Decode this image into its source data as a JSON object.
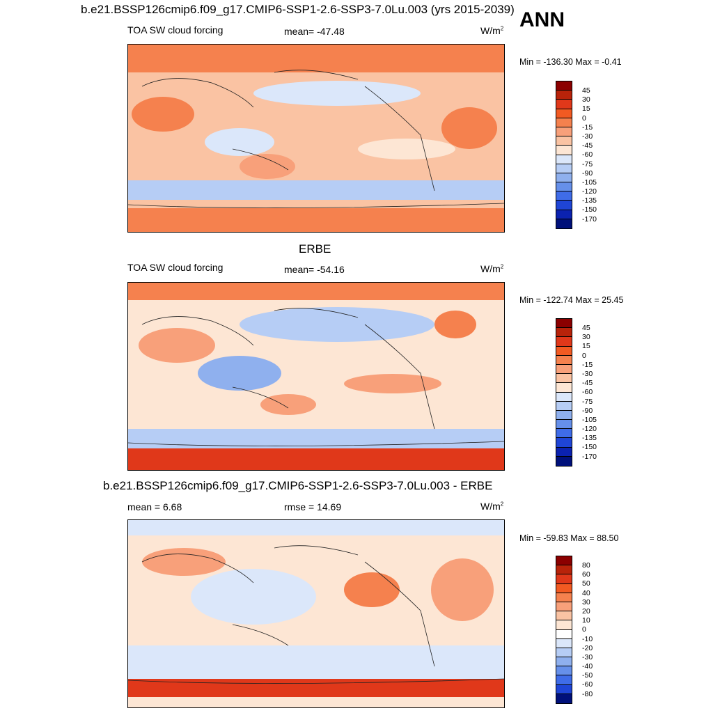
{
  "header": {
    "case_title": "b.e21.BSSP126cmip6.f09_g17.CMIP6-SSP1-2.6-SSP3-7.0Lu.003 (yrs 2015-2039)",
    "season": "ANN"
  },
  "chart_data": [
    {
      "type": "heatmap",
      "title": "b.e21.BSSP126cmip6.f09_g17.CMIP6-SSP1-2.6-SSP3-7.0Lu.003 (yrs 2015-2039)",
      "variable": "TOA SW cloud forcing",
      "mean_label": "mean= -47.48",
      "units": "W/m",
      "units_exp": "2",
      "minmax": "Min = -136.30 Max =  -0.41",
      "levels": [
        "45",
        "30",
        "15",
        "0",
        "-15",
        "-30",
        "-45",
        "-60",
        "-75",
        "-90",
        "-105",
        "-120",
        "-135",
        "-150",
        "-170"
      ],
      "colors": [
        "#8b0000",
        "#b8230a",
        "#e0381a",
        "#f25a22",
        "#f5814e",
        "#f8a07a",
        "#fac3a3",
        "#fde6d4",
        "#dbe7fa",
        "#b6cdf5",
        "#8fb0ee",
        "#6690ea",
        "#3f6ce8",
        "#1f45d6",
        "#0b22b0",
        "#00107a"
      ]
    },
    {
      "type": "heatmap",
      "title": "ERBE",
      "variable": "TOA SW cloud forcing",
      "mean_label": "mean= -54.16",
      "units": "W/m",
      "units_exp": "2",
      "minmax": "Min = -122.74 Max =  25.45",
      "levels": [
        "45",
        "30",
        "15",
        "0",
        "-15",
        "-30",
        "-45",
        "-60",
        "-75",
        "-90",
        "-105",
        "-120",
        "-135",
        "-150",
        "-170"
      ],
      "colors": [
        "#8b0000",
        "#b8230a",
        "#e0381a",
        "#f25a22",
        "#f5814e",
        "#f8a07a",
        "#fac3a3",
        "#fde6d4",
        "#dbe7fa",
        "#b6cdf5",
        "#8fb0ee",
        "#6690ea",
        "#3f6ce8",
        "#1f45d6",
        "#0b22b0",
        "#00107a"
      ]
    },
    {
      "type": "heatmap",
      "title": "b.e21.BSSP126cmip6.f09_g17.CMIP6-SSP1-2.6-SSP3-7.0Lu.003 - ERBE",
      "variable": "",
      "mean_label": "mean =   6.68",
      "rmse_label": "rmse =  14.69",
      "units": "W/m",
      "units_exp": "2",
      "minmax": "Min = -59.83 Max =  88.50",
      "levels": [
        "80",
        "60",
        "50",
        "40",
        "30",
        "20",
        "10",
        "0",
        "-10",
        "-20",
        "-30",
        "-40",
        "-50",
        "-60",
        "-80"
      ],
      "colors": [
        "#8b0000",
        "#b8230a",
        "#e0381a",
        "#f25a22",
        "#f5814e",
        "#f8a07a",
        "#fac3a3",
        "#fde6d4",
        "#ffffff",
        "#dbe7fa",
        "#b6cdf5",
        "#8fb0ee",
        "#6690ea",
        "#3f6ce8",
        "#1f45d6",
        "#00107a"
      ]
    }
  ]
}
